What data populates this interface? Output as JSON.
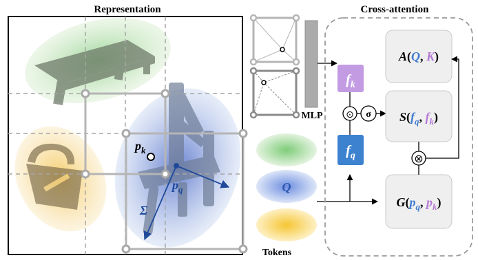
{
  "labels": {
    "representation_title": "Representation",
    "cross_attention_title": "Cross-attention",
    "mlp": "MLP",
    "tokens": "Tokens",
    "sigma_cov": "Σ",
    "p_k_base": "p",
    "p_k_sub": "k",
    "p_q_base": "p",
    "p_q_sub": "q",
    "f_k_base": "f",
    "f_k_sub": "k",
    "f_q_base": "f",
    "f_q_sub": "q",
    "q_token": "Q",
    "dot_op": "⊙",
    "sigma_op": "σ",
    "mult_op": "⊗"
  },
  "formulas": {
    "a": {
      "fn": "A",
      "open": "(",
      "arg1": "Q",
      "sep": ", ",
      "arg2": "K",
      "close": ")"
    },
    "s": {
      "fn": "S",
      "open": "(",
      "arg1_base": "f",
      "arg1_sub": "q",
      "sep": ", ",
      "arg2_base": "f",
      "arg2_sub": "k",
      "close": ")"
    },
    "g": {
      "fn": "G",
      "open": "(",
      "arg1_base": "p",
      "arg1_sub": "q",
      "sep": ", ",
      "arg2_base": "p",
      "arg2_sub": "k",
      "close": ")"
    }
  },
  "colors": {
    "q_blue": "#3f7bd0",
    "k_purple": "#b57ad6",
    "f_k_box": "#c39be3",
    "f_q_box": "#3d82cf",
    "green_blob": "#8cc78a",
    "blue_blob": "#6b8fd6",
    "yellow_blob": "#f3c64a",
    "grid_gray": "#b3b3b3",
    "dash_gray": "#a6a6a6",
    "dark_blue": "#1f4a9a"
  }
}
